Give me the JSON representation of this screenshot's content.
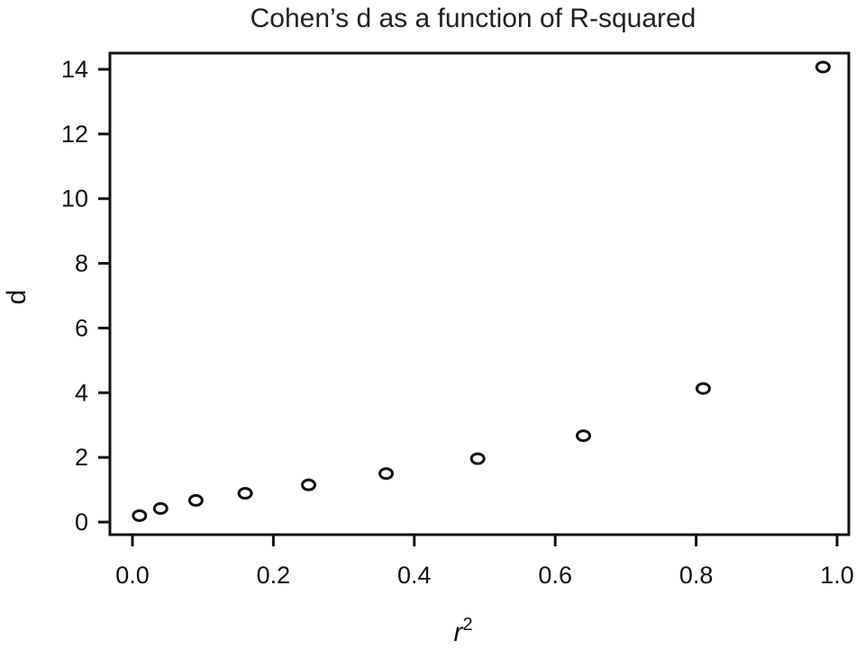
{
  "chart_data": {
    "type": "scatter",
    "title": "Cohen’s d as a function of R-squared",
    "xlabel": "r",
    "xlabel_superscript": "2",
    "ylabel": "d",
    "xlim": [
      0.0,
      1.0
    ],
    "ylim": [
      0,
      14
    ],
    "xticks": [
      "0.0",
      "0.2",
      "0.4",
      "0.6",
      "0.8",
      "1.0"
    ],
    "yticks": [
      "0",
      "2",
      "4",
      "6",
      "8",
      "10",
      "12",
      "14"
    ],
    "grid": false,
    "marker": "open-circle",
    "series": [
      {
        "x": [
          0.01,
          0.04,
          0.09,
          0.16,
          0.25,
          0.36,
          0.49,
          0.64,
          0.81,
          0.98
        ],
        "y": [
          0.2,
          0.42,
          0.67,
          0.89,
          1.15,
          1.5,
          1.96,
          2.67,
          4.13,
          14.07
        ]
      }
    ]
  }
}
